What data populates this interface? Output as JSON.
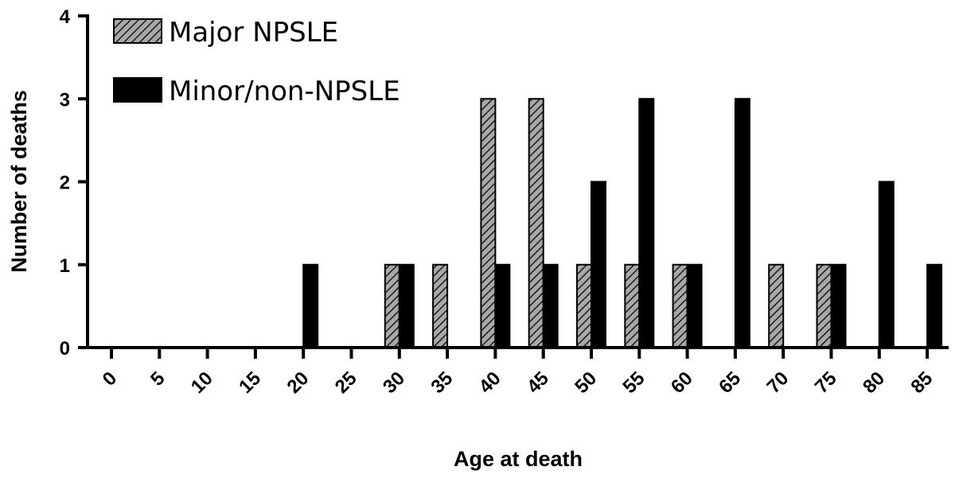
{
  "chart_data": {
    "type": "bar",
    "categories": [
      "0",
      "5",
      "10",
      "15",
      "20",
      "25",
      "30",
      "35",
      "40",
      "45",
      "50",
      "55",
      "60",
      "65",
      "70",
      "75",
      "80",
      "85"
    ],
    "series": [
      {
        "name": "Major NPSLE",
        "values": [
          0,
          0,
          0,
          0,
          0,
          0,
          1,
          1,
          3,
          3,
          1,
          1,
          1,
          0,
          1,
          1,
          0,
          0
        ],
        "pattern": "hatch"
      },
      {
        "name": "Minor/non-NPSLE",
        "values": [
          0,
          0,
          0,
          0,
          1,
          0,
          1,
          0,
          1,
          1,
          2,
          3,
          1,
          3,
          0,
          1,
          2,
          1
        ],
        "pattern": "solid"
      }
    ],
    "xlabel": "Age at death",
    "ylabel": "Number of deaths",
    "ylim": [
      0,
      4
    ],
    "yticks": [
      "0",
      "1",
      "2",
      "3",
      "4"
    ],
    "legend_position": "top-left",
    "grid": false,
    "colors": {
      "bar": "#000000",
      "hatch_bg": "#a8a8a8",
      "axis": "#000000"
    }
  }
}
